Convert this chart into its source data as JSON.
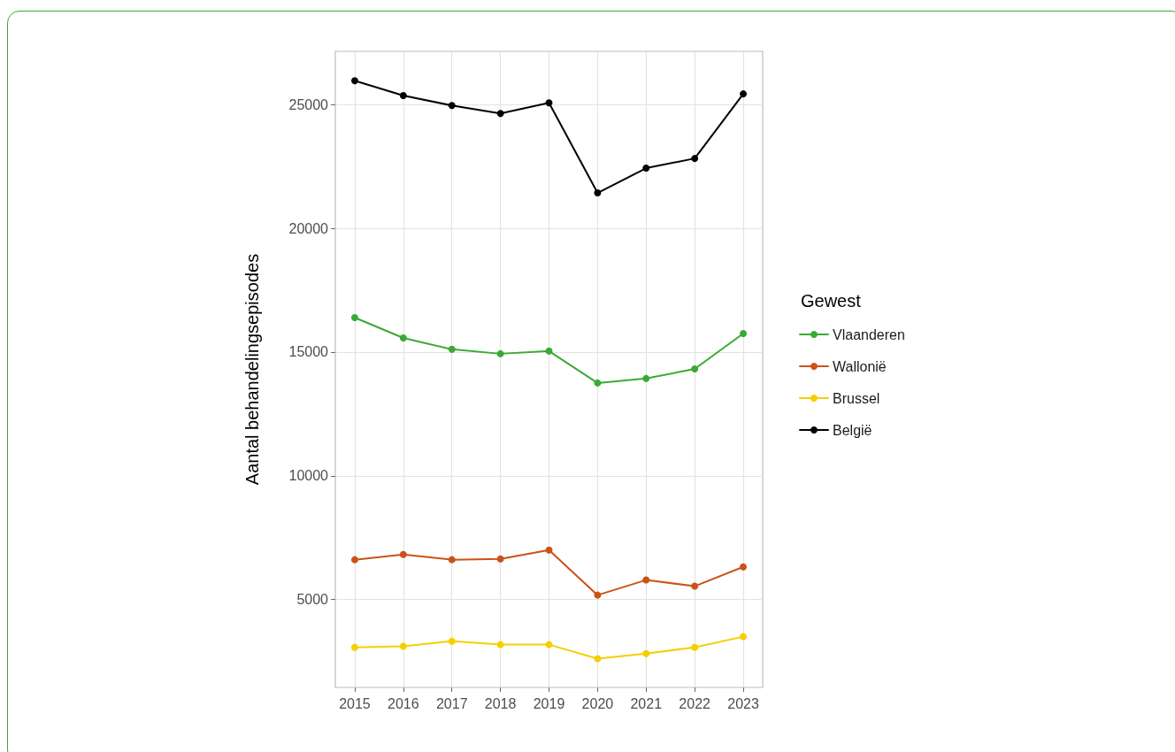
{
  "chart_data": {
    "type": "line",
    "ylabel": "Aantal behandelingsepisodes",
    "legend_title": "Gewest",
    "x": [
      2015,
      2016,
      2017,
      2018,
      2019,
      2020,
      2021,
      2022,
      2023
    ],
    "xlim": [
      2014.6,
      2023.4
    ],
    "xticks": [
      2015,
      2016,
      2017,
      2018,
      2019,
      2020,
      2021,
      2022,
      2023
    ],
    "ylim": [
      1450,
      27150
    ],
    "yticks": [
      5000,
      10000,
      15000,
      20000,
      25000
    ],
    "grid": true,
    "legend": "right",
    "marker": "circle",
    "line_style": "solid",
    "series": [
      {
        "name": "Vlaanderen",
        "color": "#3aaa35",
        "values": [
          16390,
          15570,
          15110,
          14930,
          15040,
          13750,
          13930,
          14320,
          15750
        ]
      },
      {
        "name": "Wallonië",
        "color": "#cc5216",
        "values": [
          6610,
          6820,
          6610,
          6640,
          7000,
          5180,
          5790,
          5540,
          6320
        ]
      },
      {
        "name": "Brussel",
        "color": "#f5cf00",
        "values": [
          3070,
          3110,
          3320,
          3180,
          3180,
          2610,
          2820,
          3070,
          3500
        ]
      },
      {
        "name": "België",
        "color": "#000000",
        "values": [
          25960,
          25360,
          24960,
          24640,
          25070,
          21430,
          22430,
          22820,
          25430
        ]
      }
    ]
  }
}
